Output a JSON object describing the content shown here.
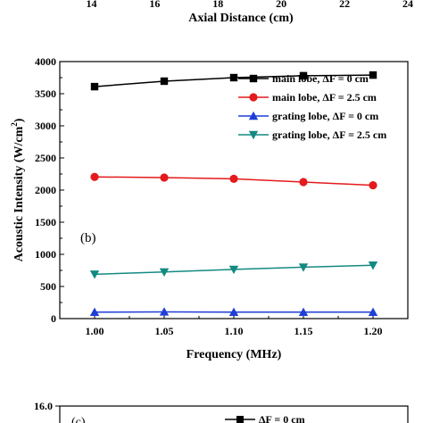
{
  "top_strip": {
    "tick_labels": [
      "14",
      "16",
      "18",
      "20",
      "22",
      "24"
    ],
    "tick_values": [
      14,
      16,
      18,
      20,
      22,
      24
    ],
    "xlim": [
      13,
      24
    ],
    "xlabel": "Axial Distance  (cm)"
  },
  "chart_data": {
    "type": "line",
    "panel_label": "(b)",
    "xlabel": "Frequency  (MHz)",
    "ylabel": "Acoustic Intensity  (W/cm²)",
    "ylabel_main": "Acoustic Intensity  (W/cm",
    "ylabel_sup": "2",
    "ylabel_end": ")",
    "xlim": [
      0.975,
      1.225
    ],
    "ylim": [
      0,
      4000
    ],
    "x_ticks": [
      1.0,
      1.05,
      1.1,
      1.15,
      1.2
    ],
    "x_tick_labels": [
      "1.00",
      "1.05",
      "1.10",
      "1.15",
      "1.20"
    ],
    "y_ticks": [
      0,
      500,
      1000,
      1500,
      2000,
      2500,
      3000,
      3500,
      4000
    ],
    "y_tick_labels": [
      "0",
      "500",
      "1000",
      "1500",
      "2000",
      "2500",
      "3000",
      "3500",
      "4000"
    ],
    "legend_position": "top-right",
    "x": [
      1.0,
      1.05,
      1.1,
      1.15,
      1.2
    ],
    "series": [
      {
        "name": "main lobe, ΔF = 0 cm",
        "marker": "square",
        "color": "#000000",
        "values": [
          3610,
          3695,
          3750,
          3780,
          3790
        ]
      },
      {
        "name": "main lobe, ΔF = 2.5 cm",
        "marker": "circle",
        "color": "#e41a1c",
        "values": [
          2205,
          2195,
          2175,
          2125,
          2075
        ]
      },
      {
        "name": "grating lobe, ΔF = 0 cm",
        "marker": "triangle-up",
        "color": "#1f3fd6",
        "values": [
          100,
          105,
          100,
          100,
          100
        ]
      },
      {
        "name": "grating lobe, ΔF = 2.5 cm",
        "marker": "triangle-down",
        "color": "#138a82",
        "values": [
          690,
          725,
          765,
          800,
          830
        ]
      }
    ]
  },
  "bottom_strip": {
    "y_tick_label": "16.0",
    "panel_label": "(c)",
    "legend_entry": "ΔF = 0 cm",
    "marker": "square",
    "color": "#000000"
  }
}
